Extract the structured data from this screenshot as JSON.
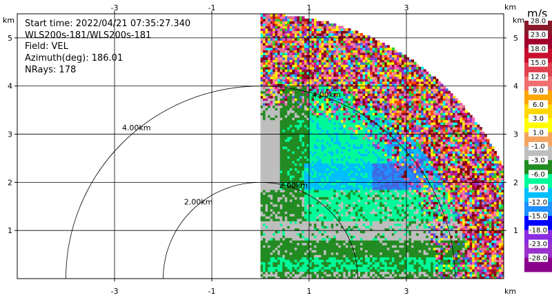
{
  "chart_data": {
    "type": "heatmap",
    "title": "",
    "xlabel": "km",
    "ylabel": "km",
    "x_range": [
      -5.0,
      5.0
    ],
    "y_range": [
      0.0,
      5.5
    ],
    "x_ticks": [
      -3,
      -1,
      1,
      3
    ],
    "y_ticks": [
      1,
      2,
      3,
      4,
      5
    ],
    "grid": true,
    "sector": {
      "azimuth_from_deg": 0,
      "azimuth_to_deg": 90,
      "max_range_km": 5.5,
      "origin_x_km": 0.0
    },
    "range_rings": [
      {
        "radius_km": 2.0,
        "label": "2.00km"
      },
      {
        "radius_km": 4.0,
        "label": "4.00km"
      }
    ],
    "info": {
      "start_time": "Start time: 2022/04/21 07:35:27.340",
      "instrument": "WLS200s-181/WLS200s-181",
      "field": "Field: VEL",
      "azimuth": "Azimuth(deg): 186.01",
      "nrays": "NRays: 178"
    },
    "colorbar": {
      "unit": "m/s",
      "levels": [
        28.0,
        23.0,
        18.0,
        15.0,
        12.0,
        9.0,
        6.0,
        3.0,
        1.0,
        -1.0,
        -3.0,
        -6.0,
        -9.0,
        -12.0,
        -15.0,
        -18.0,
        -23.0,
        -28.0
      ],
      "labels": [
        "28.0",
        "23.0",
        "18.0",
        "15.0",
        "12.0",
        "9.0",
        "6.0",
        "3.0",
        "1.0",
        "-1.0",
        "-3.0",
        "-6.0",
        "-9.0",
        "-12.0",
        "-15.0",
        "-18.0",
        "-23.0",
        "-28.0"
      ],
      "colors": [
        "#8B1A2B",
        "#A0002C",
        "#C8102E",
        "#E04050",
        "#F07070",
        "#FFA500",
        "#FFD700",
        "#FFFF00",
        "#F4A460",
        "#BEBEBE",
        "#228B22",
        "#00FA9A",
        "#00BFFF",
        "#1E90FF",
        "#0000FF",
        "#8A2BE2",
        "#9932CC",
        "#8B008B"
      ]
    }
  }
}
